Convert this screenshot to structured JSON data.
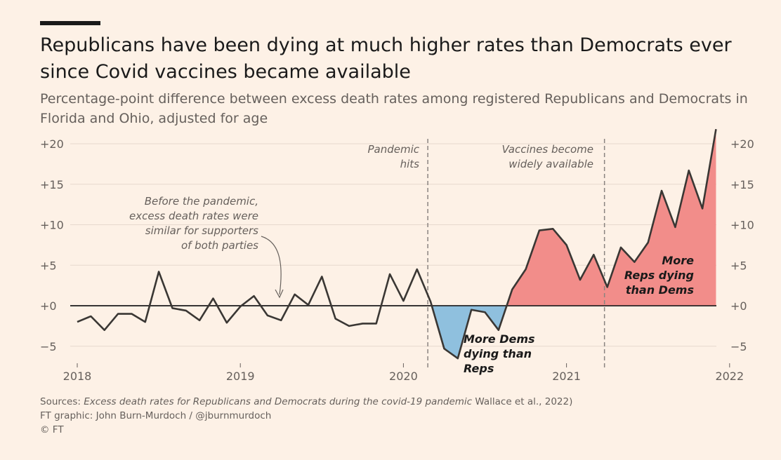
{
  "header": {
    "title": "Republicans have been dying at much higher rates than Democrats ever since Covid vaccines became available",
    "subtitle": "Percentage-point difference between excess death rates among registered Republicans and Democrats in Florida and Ohio, adjusted for age"
  },
  "footer": {
    "sources_prefix": "Sources: ",
    "sources_title": "Excess death rates for Republicans and Democrats during the covid-19 pandemic",
    "sources_suffix": " Wallace et al., 2022)",
    "graphic_credit": "FT graphic: John Burn-Murdoch / @jburnmurdoch",
    "copyright": "© FT"
  },
  "colors": {
    "background": "#FDF1E6",
    "line": "#3a3734",
    "positive_fill": "#F28D8A",
    "negative_fill": "#8FC0DE",
    "grid": "#E6D9CE",
    "annotation": "#66605c"
  },
  "chart_data": {
    "type": "area",
    "title": "Republicans have been dying at much higher rates than Democrats ever since Covid vaccines became available",
    "subtitle": "Percentage-point difference between excess death rates among registered Republicans and Democrats in Florida and Ohio, adjusted for age",
    "ylim": [
      -7,
      22
    ],
    "y_ticks": [
      -5,
      0,
      5,
      10,
      15,
      20
    ],
    "y_tick_labels": [
      "−5",
      "+0",
      "+5",
      "+10",
      "+15",
      "+20"
    ],
    "x_ticks": [
      "2018",
      "2019",
      "2020",
      "2021",
      "2022"
    ],
    "grid": true,
    "x_unit": "month (Jan 2018 = 0)",
    "series": [
      {
        "x": [
          0,
          1,
          2,
          3,
          4,
          5,
          6,
          7,
          8,
          9,
          10,
          11,
          12,
          13,
          14,
          15,
          16,
          17,
          18,
          19,
          20,
          21,
          22,
          23,
          24,
          25,
          26,
          27,
          28,
          29,
          30,
          31,
          32,
          33,
          34,
          35,
          36,
          37,
          38,
          39,
          40,
          41,
          42,
          43,
          44,
          45,
          46,
          47
        ],
        "values": [
          -2.0,
          -1.3,
          -3.0,
          -1.0,
          -1.0,
          -2.0,
          4.2,
          -0.3,
          -0.6,
          -1.8,
          0.9,
          -2.1,
          -0.1,
          1.2,
          -1.2,
          -1.8,
          1.4,
          0.1,
          3.6,
          -1.6,
          -2.5,
          -2.2,
          -2.2,
          3.9,
          0.6,
          4.5,
          0.5,
          -5.3,
          -6.5,
          -0.5,
          -0.8,
          -3.0,
          2.0,
          4.5,
          9.3,
          9.5,
          7.5,
          3.2,
          6.3,
          2.3,
          7.2,
          5.4,
          7.8,
          14.2,
          9.7,
          16.7,
          12.0,
          21.8
        ]
      }
    ],
    "annotations": {
      "pandemic_hits": "Pandemic\nhits",
      "vaccines": "Vaccines become\nwidely available",
      "before_pandemic": "Before the pandemic,\nexcess death rates were\nsimilar for supporters\nof both parties",
      "more_dems": "More Dems\ndying than\nReps",
      "more_reps": "More\nReps dying\nthan Dems"
    }
  }
}
